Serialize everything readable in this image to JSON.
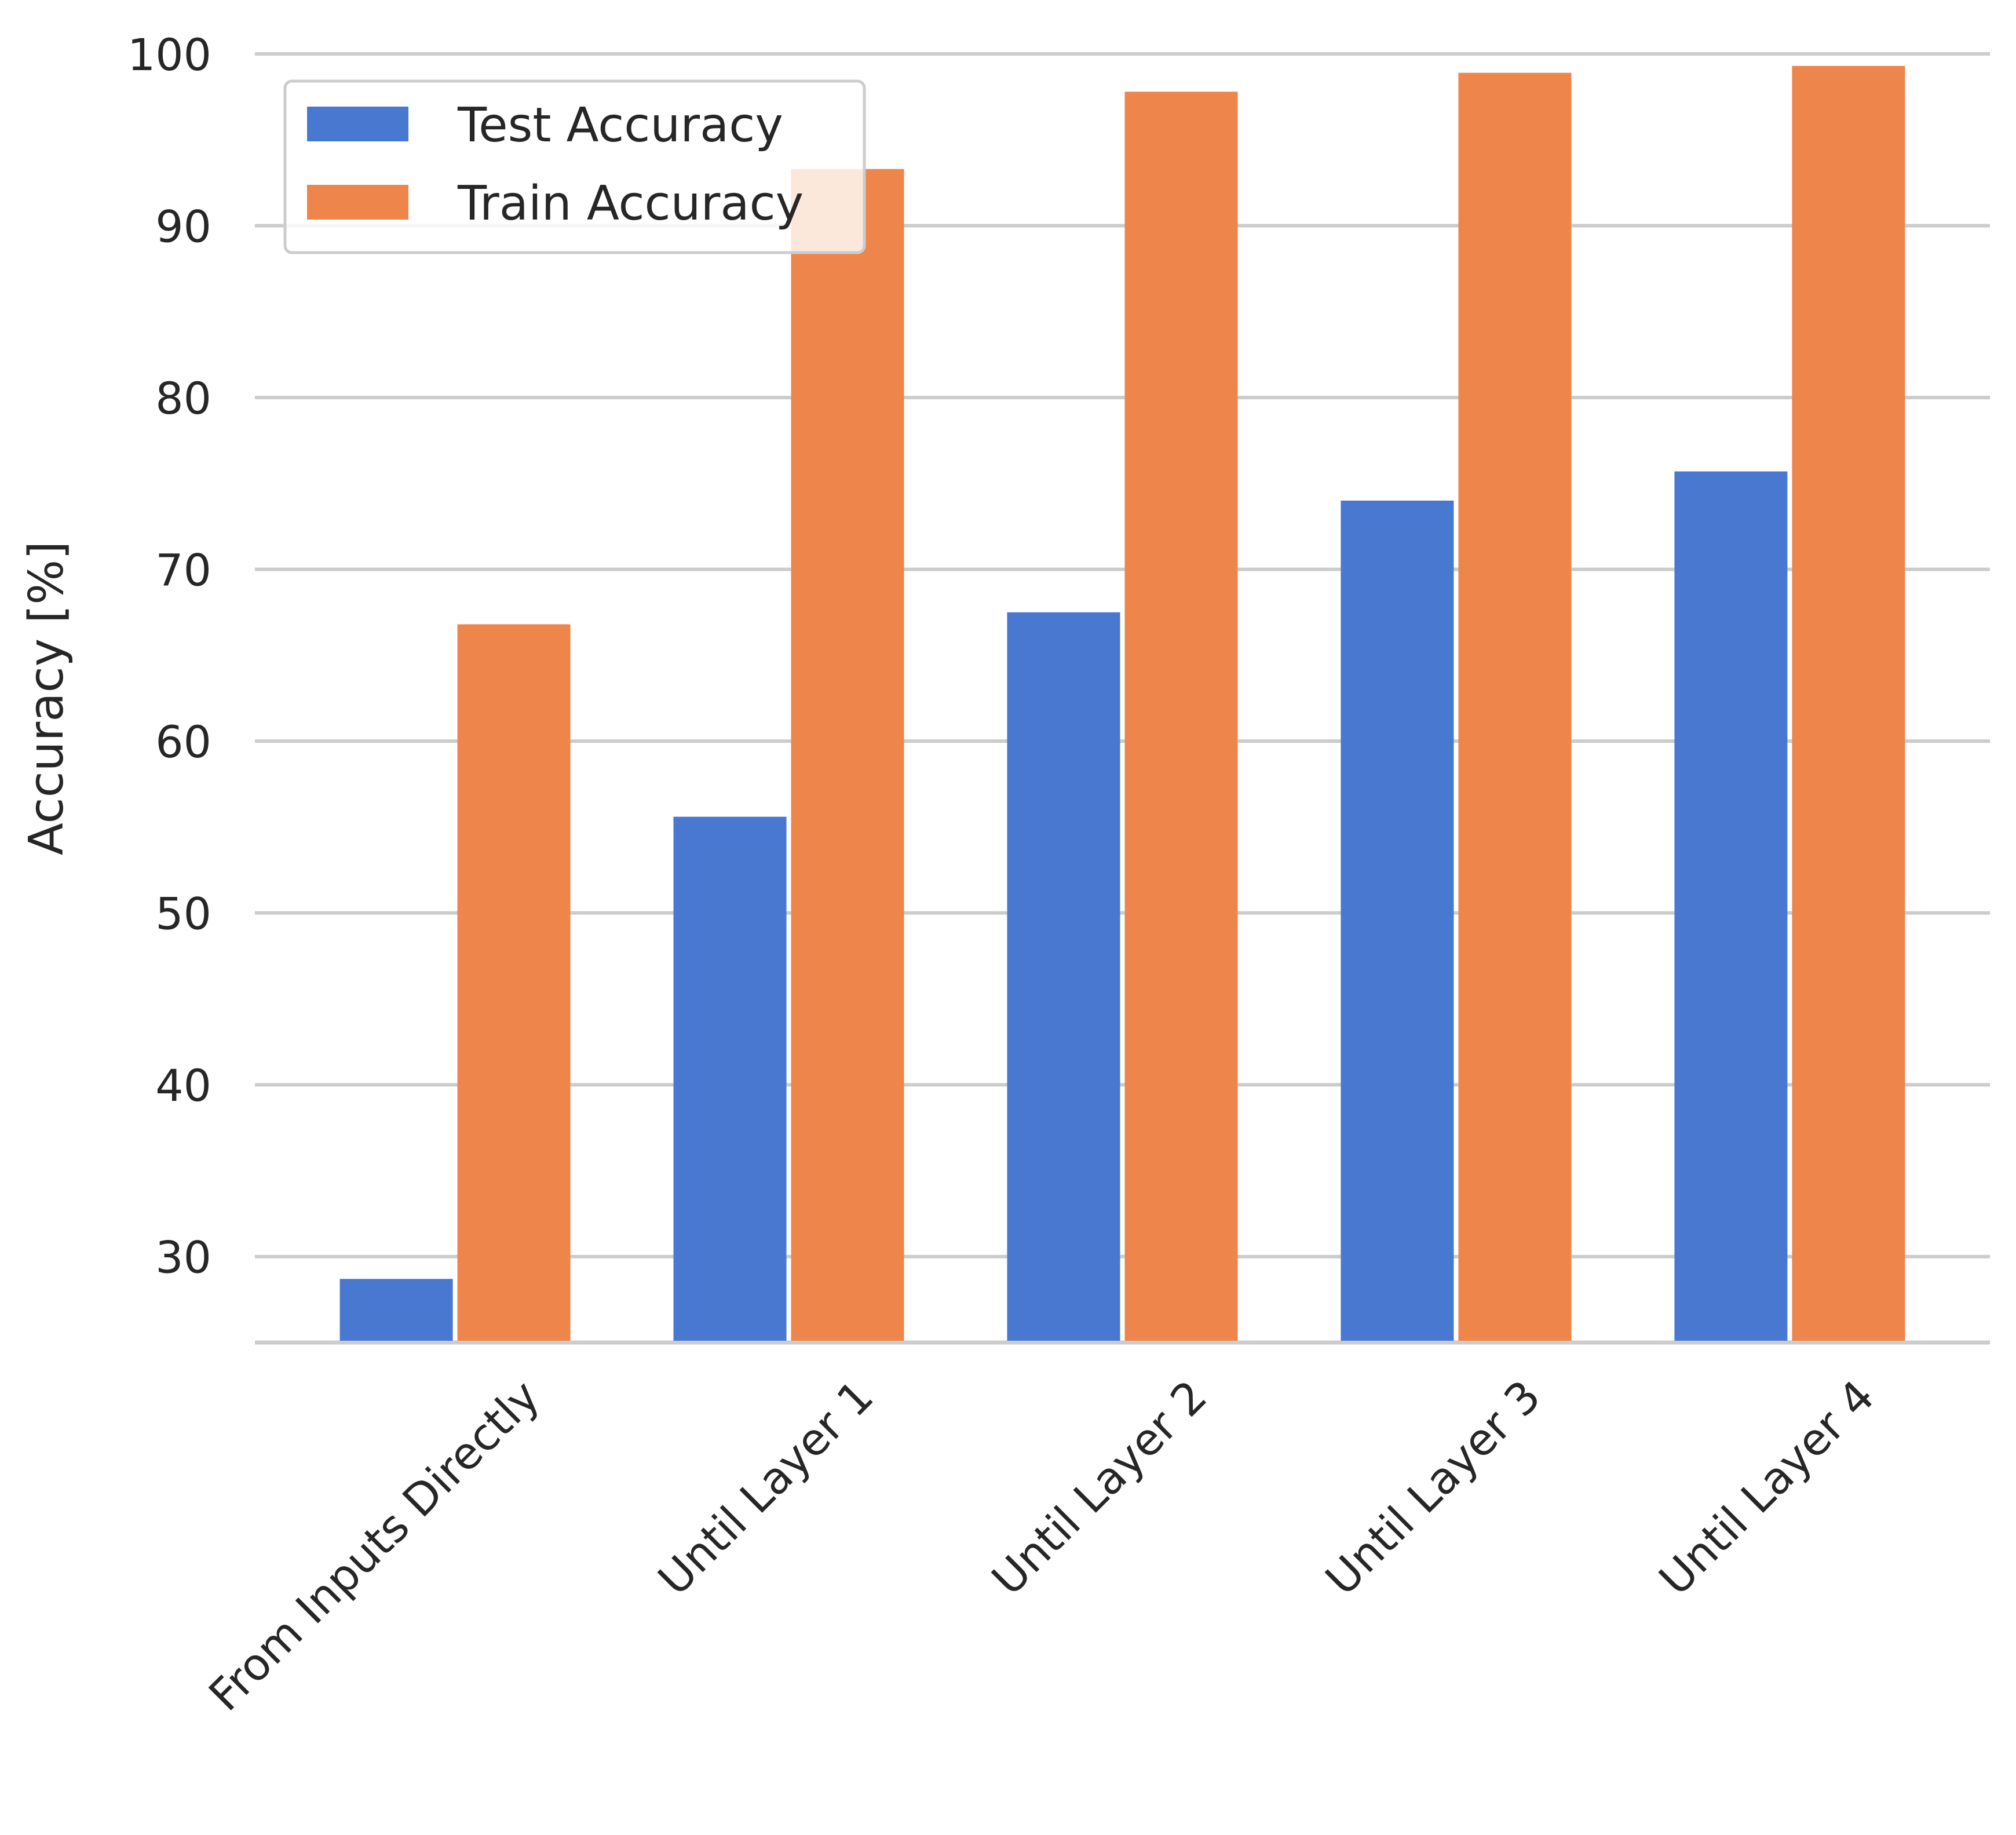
{
  "chart_data": {
    "type": "bar",
    "title": "",
    "xlabel": "",
    "ylabel": "Accuracy [%]",
    "ylim": [
      25,
      100
    ],
    "yticks": [
      30,
      40,
      50,
      60,
      70,
      80,
      90,
      100
    ],
    "grid": "horizontal",
    "legend_position": "top-left",
    "categories": [
      "From Inputs Directly",
      "Until Layer 1",
      "Until Layer 2",
      "Until Layer 3",
      "Until Layer 4"
    ],
    "series": [
      {
        "name": "Test Accuracy",
        "color": "#4878d0",
        "values": [
          28.7,
          55.6,
          67.5,
          74.0,
          75.7
        ]
      },
      {
        "name": "Train Accuracy",
        "color": "#ee854a",
        "values": [
          66.8,
          93.3,
          97.8,
          98.9,
          99.3
        ]
      }
    ]
  }
}
